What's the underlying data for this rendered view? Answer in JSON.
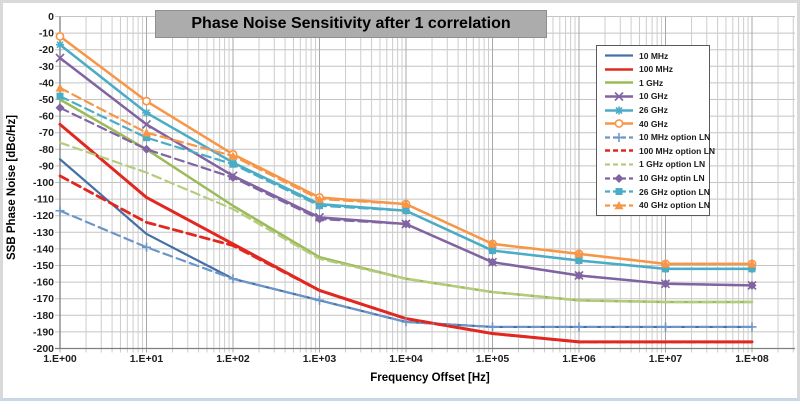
{
  "chart": {
    "title": "Phase Noise Sensitivity after 1 correlation",
    "title_bg": "#ACACAC",
    "x_axis_label": "Frequency Offset [Hz]",
    "y_axis_label": "SSB Phase Noise [dBc/Hz]",
    "colors": {
      "axis": "#7F7F7F",
      "grid_major": "#A8A8A8",
      "grid_minor": "#CCCCCC",
      "grid_horizontal": "#C4C4C4",
      "tick_text": "#1F1F1F"
    }
  },
  "chart_data": {
    "type": "line",
    "title": "Phase Noise Sensitivity after 1 correlation",
    "xlabel": "Frequency Offset [Hz]",
    "ylabel": "SSB Phase Noise [dBc/Hz]",
    "x_scale": "log",
    "x_values_hz": [
      1,
      10,
      100,
      1000,
      10000,
      100000,
      1000000,
      10000000,
      100000000
    ],
    "x_ticks": [
      "1.E+00",
      "1.E+01",
      "1.E+02",
      "1.E+03",
      "1.E+04",
      "1.E+05",
      "1.E+06",
      "1.E+07",
      "1.E+08"
    ],
    "y_ticks": [
      "0",
      "-10",
      "-20",
      "-30",
      "-40",
      "-50",
      "-60",
      "-70",
      "-80",
      "-90",
      "-100",
      "-110",
      "-120",
      "-130",
      "-140",
      "-150",
      "-160",
      "-170",
      "-180",
      "-190",
      "-200"
    ],
    "ylim": [
      -200,
      0
    ],
    "grid": true,
    "legend_position": "top-right",
    "series": [
      {
        "name": "10 MHz",
        "color": "#4470A6",
        "style": "solid",
        "marker": "none",
        "width": 2.2,
        "values": [
          -86,
          -131,
          -158,
          -171,
          -184,
          -187,
          -187,
          -187,
          -187
        ]
      },
      {
        "name": "100 MHz",
        "color": "#E02820",
        "style": "solid",
        "marker": "none",
        "width": 3,
        "values": [
          -65,
          -109,
          -137,
          -165,
          -182,
          -191,
          -196,
          -196,
          -196
        ]
      },
      {
        "name": "1 GHz",
        "color": "#9BBB59",
        "style": "solid",
        "marker": "none",
        "width": 2.5,
        "values": [
          -50,
          -80,
          -114,
          -145,
          -158,
          -166,
          -171,
          -172,
          -172
        ]
      },
      {
        "name": "10 GHz",
        "color": "#8064A2",
        "style": "solid",
        "marker": "x",
        "width": 2.5,
        "values": [
          -25,
          -65,
          -96,
          -121,
          -125,
          -148,
          -156,
          -161,
          -162
        ]
      },
      {
        "name": "26 GHz",
        "color": "#4BACC6",
        "style": "solid",
        "marker": "asterisk",
        "width": 2.5,
        "values": [
          -17,
          -58,
          -88,
          -113,
          -117,
          -141,
          -147,
          -152,
          -152
        ]
      },
      {
        "name": "40 GHz",
        "color": "#F79646",
        "style": "solid",
        "marker": "circle",
        "width": 2.5,
        "values": [
          -12,
          -51,
          -83,
          -109,
          -113,
          -137,
          -143,
          -149,
          -149
        ]
      },
      {
        "name": "10 MHz option LN",
        "color": "#6D96C8",
        "style": "dashed",
        "marker": "plus",
        "width": 2.2,
        "values": [
          -117,
          -139,
          -158,
          -171,
          -184,
          -187,
          -187,
          -187,
          -187
        ]
      },
      {
        "name": "100 MHz option LN",
        "color": "#E02820",
        "style": "dashed",
        "marker": "none",
        "width": 2.8,
        "values": [
          -96,
          -124,
          -138,
          -165,
          -182,
          -191,
          -196,
          -196,
          -196
        ]
      },
      {
        "name": "1 GHz option LN",
        "color": "#B5CC7E",
        "style": "dashed",
        "marker": "none",
        "width": 2.2,
        "values": [
          -76,
          -94,
          -116,
          -146,
          -158,
          -166,
          -171,
          -172,
          -172
        ]
      },
      {
        "name": "10 GHz optin LN",
        "color": "#8064A2",
        "style": "dashed",
        "marker": "diamond",
        "width": 2.2,
        "values": [
          -55,
          -80,
          -97,
          -122,
          -125,
          -148,
          -156,
          -161,
          -162
        ]
      },
      {
        "name": "26 GHz option LN",
        "color": "#4BACC6",
        "style": "dashed",
        "marker": "square",
        "width": 2.2,
        "values": [
          -48,
          -73,
          -89,
          -114,
          -117,
          -141,
          -147,
          -152,
          -152
        ]
      },
      {
        "name": "40 GHz option LN",
        "color": "#F79646",
        "style": "dashed",
        "marker": "triangle",
        "width": 2.2,
        "values": [
          -43,
          -70,
          -84,
          -110,
          -113,
          -137,
          -143,
          -149,
          -149
        ]
      }
    ]
  }
}
